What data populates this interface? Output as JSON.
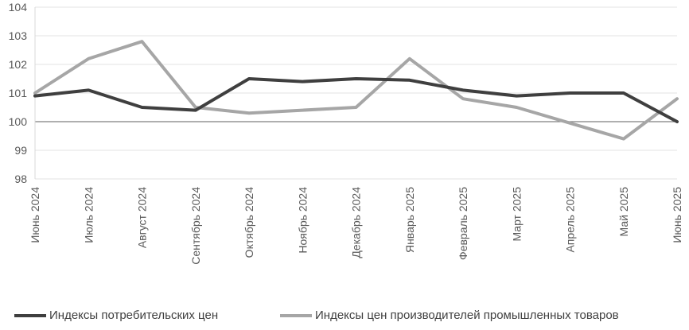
{
  "chart_data": {
    "type": "line",
    "x": [
      "Июнь 2024",
      "Июль 2024",
      "Август 2024",
      "Сентябрь 2024",
      "Октябрь 2024",
      "Ноябрь 2024",
      "Декабрь 2024",
      "Январь 2025",
      "Февраль 2025",
      "Март 2025",
      "Апрель 2025",
      "Май 2025",
      "Июнь 2025"
    ],
    "series": [
      {
        "name": "Индексы потребительских цен",
        "color": "#3f3f3f",
        "values": [
          100.9,
          101.1,
          100.5,
          100.4,
          101.5,
          101.4,
          101.5,
          101.45,
          101.1,
          100.9,
          101.0,
          101.0,
          100.0
        ]
      },
      {
        "name": "Индексы цен производителей промышленных товаров",
        "color": "#a6a6a6",
        "values": [
          101.0,
          102.2,
          102.8,
          100.5,
          100.3,
          100.4,
          100.5,
          102.2,
          100.8,
          100.5,
          99.95,
          99.4,
          100.8
        ]
      }
    ],
    "ylim": [
      98,
      104
    ],
    "yticks": [
      "98",
      "99",
      "100",
      "101",
      "102",
      "103",
      "104"
    ],
    "reference_line": 100,
    "grid": true,
    "legend_position": "bottom"
  }
}
